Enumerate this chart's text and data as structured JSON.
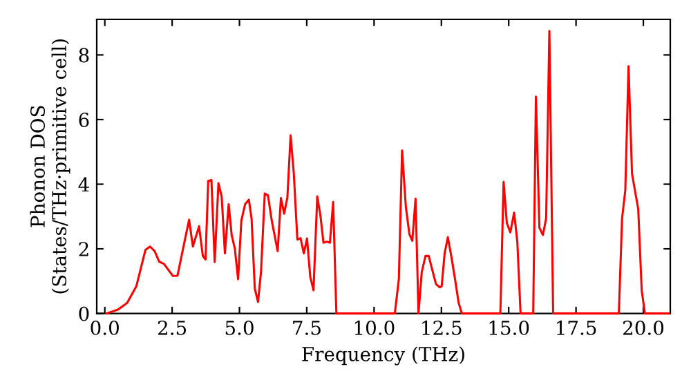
{
  "chart_data": {
    "type": "line",
    "xlabel": "Frequency (THz)",
    "ylabel": "Phonon DOS\n(States/THz·primitive cell)",
    "xlim": [
      -0.3,
      21
    ],
    "ylim": [
      0,
      9.1
    ],
    "xticks": [
      {
        "value": 0,
        "label": "0.0"
      },
      2.5,
      {
        "value": 5,
        "label": "5.0"
      },
      7.5,
      {
        "value": 10,
        "label": "10.0"
      },
      12.5,
      {
        "value": 15,
        "label": "15.0"
      },
      17.5,
      {
        "value": 20,
        "label": "20.0"
      }
    ],
    "yticks": [
      0,
      2,
      4,
      6,
      8
    ],
    "grid": false,
    "marker": "none",
    "line_style": "solid",
    "series": [
      {
        "color": "#ff0000",
        "x": [
          0.06,
          0.49,
          0.83,
          1.17,
          1.51,
          1.68,
          1.85,
          2.02,
          2.19,
          2.53,
          2.7,
          2.87,
          3.13,
          3.27,
          3.5,
          3.64,
          3.74,
          3.84,
          3.96,
          4.08,
          4.22,
          4.34,
          4.46,
          4.6,
          4.71,
          4.83,
          4.95,
          5.07,
          5.21,
          5.35,
          5.45,
          5.57,
          5.69,
          5.8,
          5.94,
          6.06,
          6.2,
          6.42,
          6.54,
          6.66,
          6.78,
          6.9,
          7.02,
          7.15,
          7.27,
          7.39,
          7.51,
          7.63,
          7.75,
          7.89,
          8.01,
          8.12,
          8.24,
          8.36,
          8.48,
          8.6,
          10.77,
          10.92,
          11.04,
          11.18,
          11.31,
          11.42,
          11.54,
          11.65,
          11.77,
          11.91,
          12.03,
          12.16,
          12.3,
          12.44,
          12.51,
          12.62,
          12.74,
          12.88,
          13.02,
          13.14,
          13.26,
          14.69,
          14.81,
          14.93,
          15.06,
          15.2,
          15.32,
          15.44,
          15.91,
          16.01,
          16.14,
          16.27,
          16.39,
          16.51,
          16.65,
          19.09,
          19.21,
          19.33,
          19.45,
          19.58,
          19.81,
          19.94,
          20.06,
          20.94
        ],
        "values": [
          0,
          0.12,
          0.33,
          0.84,
          1.97,
          2.07,
          1.93,
          1.6,
          1.54,
          1.16,
          1.17,
          1.86,
          2.9,
          2.07,
          2.7,
          1.78,
          1.67,
          4.1,
          4.13,
          1.59,
          4.03,
          3.62,
          1.86,
          3.38,
          2.43,
          2.0,
          1.06,
          2.87,
          3.38,
          3.52,
          2.94,
          0.77,
          0.36,
          1.28,
          3.71,
          3.65,
          2.87,
          1.93,
          3.57,
          3.09,
          3.59,
          5.51,
          4.32,
          2.29,
          2.33,
          1.86,
          2.32,
          1.13,
          0.72,
          3.62,
          3.01,
          2.19,
          2.22,
          2.19,
          3.45,
          0,
          0,
          1.06,
          5.04,
          3.3,
          2.46,
          2.25,
          3.55,
          0,
          1.28,
          1.78,
          1.78,
          1.35,
          0.91,
          0.81,
          0.84,
          1.86,
          2.36,
          1.71,
          0.99,
          0.33,
          0,
          0,
          4.07,
          2.8,
          2.51,
          3.12,
          2.22,
          0,
          0,
          6.71,
          2.65,
          2.43,
          2.94,
          8.74,
          0,
          0,
          2.94,
          3.81,
          7.65,
          4.32,
          3.23,
          0.7,
          0,
          0
        ]
      }
    ]
  }
}
